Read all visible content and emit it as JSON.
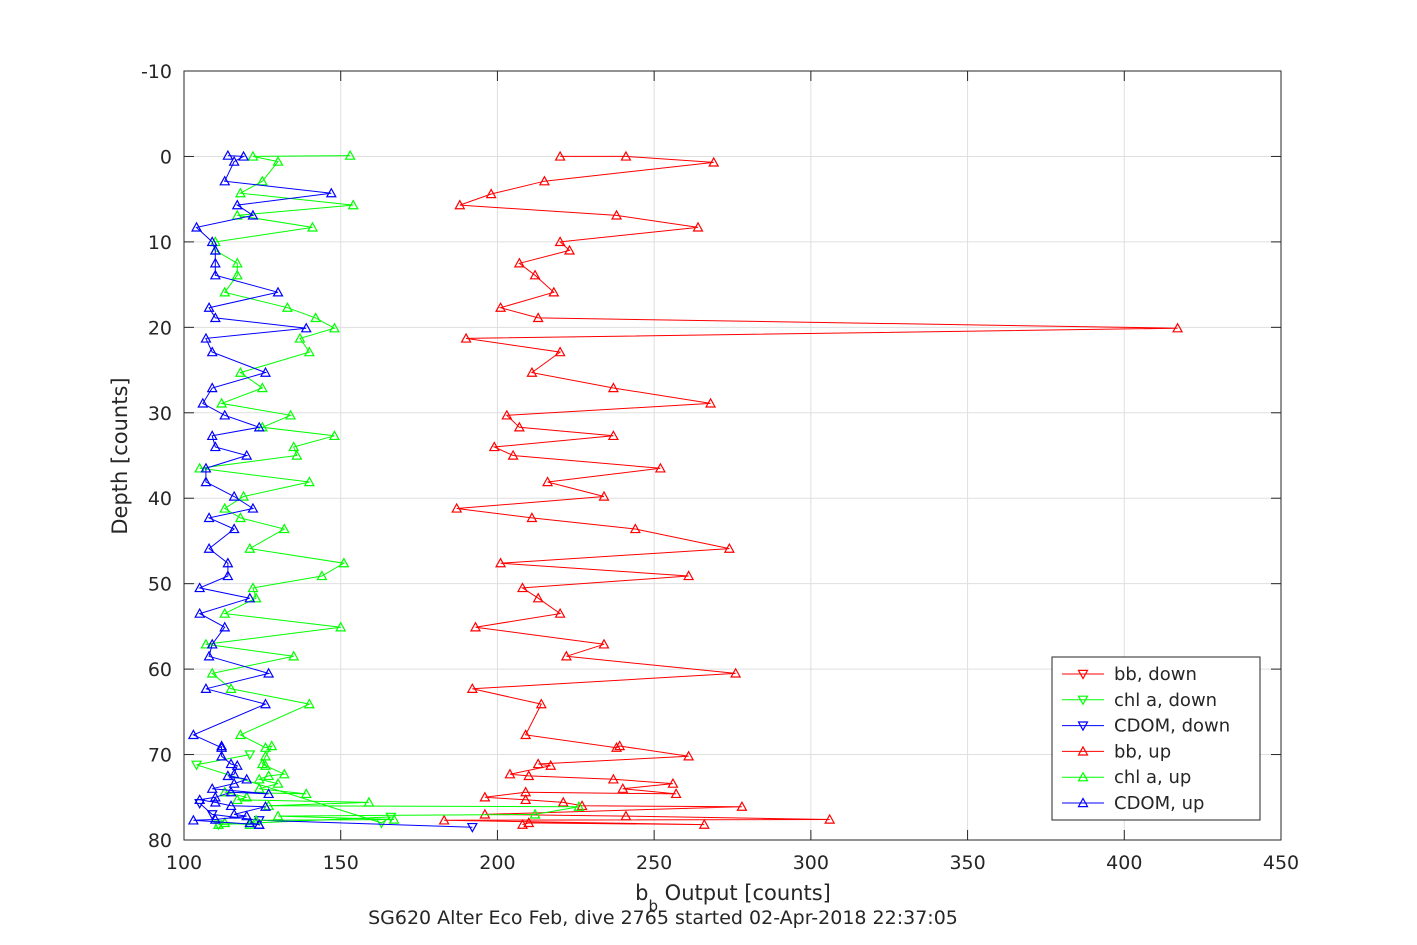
{
  "chart_data": {
    "type": "line",
    "title": "",
    "xlabel": {
      "main": "b",
      "sub": "b",
      "rest": " Output [counts]"
    },
    "ylabel": "Depth [counts]",
    "caption": "SG620 Alter Eco Feb, dive 2765 started 02-Apr-2018 22:37:05",
    "xlim": [
      100,
      450
    ],
    "ylim": [
      -10,
      80
    ],
    "y_reversed": true,
    "grid": true,
    "legend_position": "bottom-right",
    "xticks": [
      "100",
      "150",
      "200",
      "250",
      "300",
      "350",
      "400",
      "450"
    ],
    "yticks": [
      "-10",
      "0",
      "10",
      "20",
      "30",
      "40",
      "50",
      "60",
      "70",
      "80"
    ],
    "series": [
      {
        "name": "bb, down",
        "color": "#ff0000",
        "marker": "triangle-down",
        "points": []
      },
      {
        "name": "chl a, down",
        "color": "#00ff00",
        "marker": "triangle-down",
        "points": [
          [
            111,
            78.2
          ],
          [
            166,
            77.3
          ],
          [
            163,
            78.0
          ],
          [
            104,
            71.2
          ],
          [
            121,
            70.0
          ]
        ]
      },
      {
        "name": "CDOM, down",
        "color": "#0000ff",
        "marker": "triangle-down",
        "points": [
          [
            192,
            78.5
          ],
          [
            124,
            77.7
          ],
          [
            109,
            77.0
          ],
          [
            105,
            75.7
          ]
        ]
      },
      {
        "name": "bb, up",
        "color": "#ff0000",
        "marker": "triangle-up",
        "points": [
          [
            220,
            0
          ],
          [
            241,
            0
          ],
          [
            269,
            0.7
          ],
          [
            215,
            2.9
          ],
          [
            198,
            4.4
          ],
          [
            188,
            5.7
          ],
          [
            238,
            6.9
          ],
          [
            264,
            8.3
          ],
          [
            220,
            10.0
          ],
          [
            223,
            11.0
          ],
          [
            207,
            12.5
          ],
          [
            212,
            13.9
          ],
          [
            218,
            15.9
          ],
          [
            201,
            17.7
          ],
          [
            213,
            18.9
          ],
          [
            417,
            20.1
          ],
          [
            190,
            21.3
          ],
          [
            220,
            22.9
          ],
          [
            211,
            25.3
          ],
          [
            237,
            27.1
          ],
          [
            268,
            28.9
          ],
          [
            203,
            30.3
          ],
          [
            207,
            31.7
          ],
          [
            237,
            32.7
          ],
          [
            199,
            34.0
          ],
          [
            205,
            35.0
          ],
          [
            252,
            36.5
          ],
          [
            216,
            38.1
          ],
          [
            234,
            39.8
          ],
          [
            187,
            41.2
          ],
          [
            211,
            42.3
          ],
          [
            244,
            43.6
          ],
          [
            274,
            45.9
          ],
          [
            201,
            47.6
          ],
          [
            261,
            49.1
          ],
          [
            208,
            50.5
          ],
          [
            213,
            51.7
          ],
          [
            220,
            53.5
          ],
          [
            193,
            55.1
          ],
          [
            234,
            57.1
          ],
          [
            222,
            58.5
          ],
          [
            276,
            60.5
          ],
          [
            192,
            62.3
          ],
          [
            214,
            64.1
          ],
          [
            209,
            67.7
          ],
          [
            238,
            69.2
          ],
          [
            239,
            69.0
          ],
          [
            261,
            70.2
          ],
          [
            213,
            71.1
          ],
          [
            217,
            71.3
          ],
          [
            204,
            72.3
          ],
          [
            210,
            72.5
          ],
          [
            237,
            72.9
          ],
          [
            256,
            73.4
          ],
          [
            240,
            74.0
          ],
          [
            257,
            74.6
          ],
          [
            209,
            74.4
          ],
          [
            196,
            75.0
          ],
          [
            209,
            75.3
          ],
          [
            221,
            75.6
          ],
          [
            227,
            76.0
          ],
          [
            278,
            76.1
          ],
          [
            196,
            77.0
          ],
          [
            241,
            77.2
          ],
          [
            306,
            77.6
          ],
          [
            183,
            77.7
          ],
          [
            266,
            78.2
          ],
          [
            210,
            78.0
          ],
          [
            208,
            78.2
          ]
        ]
      },
      {
        "name": "chl a, up",
        "color": "#00ff00",
        "marker": "triangle-up",
        "points": [
          [
            153,
            -0.1
          ],
          [
            122,
            0
          ],
          [
            130,
            0.6
          ],
          [
            125,
            2.9
          ],
          [
            118,
            4.3
          ],
          [
            154,
            5.7
          ],
          [
            117,
            6.9
          ],
          [
            141,
            8.3
          ],
          [
            110,
            10.0
          ],
          [
            110,
            11.0
          ],
          [
            117,
            12.5
          ],
          [
            117,
            13.9
          ],
          [
            113,
            15.9
          ],
          [
            133,
            17.7
          ],
          [
            142,
            18.9
          ],
          [
            148,
            20.1
          ],
          [
            137,
            21.3
          ],
          [
            140,
            22.9
          ],
          [
            118,
            25.3
          ],
          [
            125,
            27.1
          ],
          [
            112,
            28.9
          ],
          [
            134,
            30.3
          ],
          [
            125,
            31.7
          ],
          [
            148,
            32.7
          ],
          [
            135,
            34.0
          ],
          [
            136,
            35.0
          ],
          [
            105,
            36.5
          ],
          [
            140,
            38.1
          ],
          [
            119,
            39.8
          ],
          [
            113,
            41.2
          ],
          [
            118,
            42.3
          ],
          [
            132,
            43.6
          ],
          [
            121,
            45.9
          ],
          [
            151,
            47.6
          ],
          [
            144,
            49.1
          ],
          [
            122,
            50.5
          ],
          [
            123,
            51.7
          ],
          [
            113,
            53.5
          ],
          [
            150,
            55.1
          ],
          [
            107,
            57.1
          ],
          [
            135,
            58.5
          ],
          [
            109,
            60.5
          ],
          [
            115,
            62.3
          ],
          [
            140,
            64.1
          ],
          [
            118,
            67.7
          ],
          [
            126,
            69.2
          ],
          [
            128,
            69.0
          ],
          [
            126,
            70.2
          ],
          [
            125,
            71.1
          ],
          [
            126,
            71.3
          ],
          [
            132,
            72.3
          ],
          [
            127,
            72.5
          ],
          [
            124,
            72.9
          ],
          [
            130,
            73.4
          ],
          [
            124,
            74.0
          ],
          [
            139,
            74.6
          ],
          [
            113,
            74.4
          ],
          [
            120,
            75.0
          ],
          [
            117,
            75.3
          ],
          [
            159,
            75.6
          ],
          [
            127,
            76.0
          ],
          [
            226,
            76.1
          ],
          [
            212,
            77.0
          ],
          [
            130,
            77.2
          ],
          [
            167,
            77.6
          ],
          [
            123,
            77.7
          ],
          [
            121,
            78.2
          ],
          [
            113,
            78.0
          ],
          [
            111,
            78.2
          ]
        ]
      },
      {
        "name": "CDOM, up",
        "color": "#0000ff",
        "marker": "triangle-up",
        "points": [
          [
            114,
            -0.1
          ],
          [
            119,
            0
          ],
          [
            116,
            0.6
          ],
          [
            113,
            2.9
          ],
          [
            147,
            4.3
          ],
          [
            117,
            5.7
          ],
          [
            122,
            6.9
          ],
          [
            104,
            8.3
          ],
          [
            109,
            10.0
          ],
          [
            110,
            11.0
          ],
          [
            110,
            12.5
          ],
          [
            110,
            13.9
          ],
          [
            130,
            15.9
          ],
          [
            108,
            17.7
          ],
          [
            110,
            18.9
          ],
          [
            139,
            20.1
          ],
          [
            107,
            21.3
          ],
          [
            109,
            22.9
          ],
          [
            126,
            25.3
          ],
          [
            109,
            27.1
          ],
          [
            106,
            28.9
          ],
          [
            113,
            30.3
          ],
          [
            124,
            31.7
          ],
          [
            109,
            32.7
          ],
          [
            110,
            34.0
          ],
          [
            120,
            35.0
          ],
          [
            107,
            36.5
          ],
          [
            107,
            38.1
          ],
          [
            116,
            39.8
          ],
          [
            122,
            41.2
          ],
          [
            108,
            42.3
          ],
          [
            116,
            43.6
          ],
          [
            108,
            45.9
          ],
          [
            114,
            47.6
          ],
          [
            114,
            49.1
          ],
          [
            105,
            50.5
          ],
          [
            121,
            51.7
          ],
          [
            105,
            53.5
          ],
          [
            113,
            55.1
          ],
          [
            109,
            57.1
          ],
          [
            108,
            58.5
          ],
          [
            127,
            60.5
          ],
          [
            107,
            62.3
          ],
          [
            126,
            64.1
          ],
          [
            103,
            67.7
          ],
          [
            112,
            69.2
          ],
          [
            112,
            69.0
          ],
          [
            112,
            70.2
          ],
          [
            115,
            71.1
          ],
          [
            117,
            71.3
          ],
          [
            116,
            72.3
          ],
          [
            114,
            72.5
          ],
          [
            120,
            72.9
          ],
          [
            116,
            73.4
          ],
          [
            109,
            74.0
          ],
          [
            127,
            74.6
          ],
          [
            115,
            74.4
          ],
          [
            110,
            75.0
          ],
          [
            105,
            75.3
          ],
          [
            110,
            75.6
          ],
          [
            115,
            76.0
          ],
          [
            126,
            76.1
          ],
          [
            116,
            77.0
          ],
          [
            120,
            77.2
          ],
          [
            110,
            77.6
          ],
          [
            103,
            77.7
          ],
          [
            124,
            78.2
          ],
          [
            121,
            78.0
          ],
          [
            124,
            78.2
          ]
        ]
      }
    ]
  }
}
